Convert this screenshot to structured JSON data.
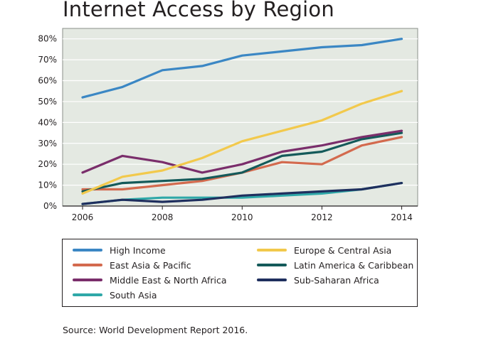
{
  "title": "Internet Access by Region",
  "source": "Source: World Development Report 2016.",
  "chart_data": {
    "type": "line",
    "title": "Internet Access by Region",
    "xlabel": "",
    "ylabel": "",
    "xlim": [
      2005.5,
      2014.4
    ],
    "ylim": [
      0,
      85
    ],
    "x_ticks": [
      2006,
      2008,
      2010,
      2012,
      2014
    ],
    "y_ticks": [
      0,
      10,
      20,
      30,
      40,
      50,
      60,
      70,
      80
    ],
    "y_tick_labels": [
      "0%",
      "10%",
      "20%",
      "30%",
      "40%",
      "50%",
      "60%",
      "70%",
      "80%"
    ],
    "grid": "horizontal",
    "background": "#e4e9e2",
    "legend_position": "below",
    "x": [
      2006,
      2007,
      2008,
      2009,
      2010,
      2011,
      2012,
      2013,
      2014
    ],
    "series": [
      {
        "name": "High Income",
        "color": "#3b87c4",
        "values": [
          52,
          57,
          65,
          67,
          72,
          74,
          76,
          77,
          80
        ]
      },
      {
        "name": "Europe & Central Asia",
        "color": "#f2c94c",
        "values": [
          6,
          14,
          17,
          23,
          31,
          36,
          41,
          49,
          55
        ]
      },
      {
        "name": "East Asia & Pacific",
        "color": "#d36a4e",
        "values": [
          8,
          8,
          10,
          12,
          16,
          21,
          20,
          29,
          33
        ]
      },
      {
        "name": "Latin America & Caribbean",
        "color": "#145a5a",
        "values": [
          7,
          11,
          12,
          13,
          16,
          24,
          26,
          32,
          35
        ]
      },
      {
        "name": "Middle East & North Africa",
        "color": "#7a2e6b",
        "values": [
          16,
          24,
          21,
          16,
          20,
          26,
          29,
          33,
          36
        ]
      },
      {
        "name": "Sub-Saharan Africa",
        "color": "#1f2f5e",
        "values": [
          1,
          3,
          2,
          3,
          5,
          6,
          7,
          8,
          11
        ]
      },
      {
        "name": "South Asia",
        "color": "#2fa8a8",
        "values": [
          1,
          3,
          4,
          4,
          4,
          5,
          6,
          8,
          11
        ]
      }
    ]
  }
}
